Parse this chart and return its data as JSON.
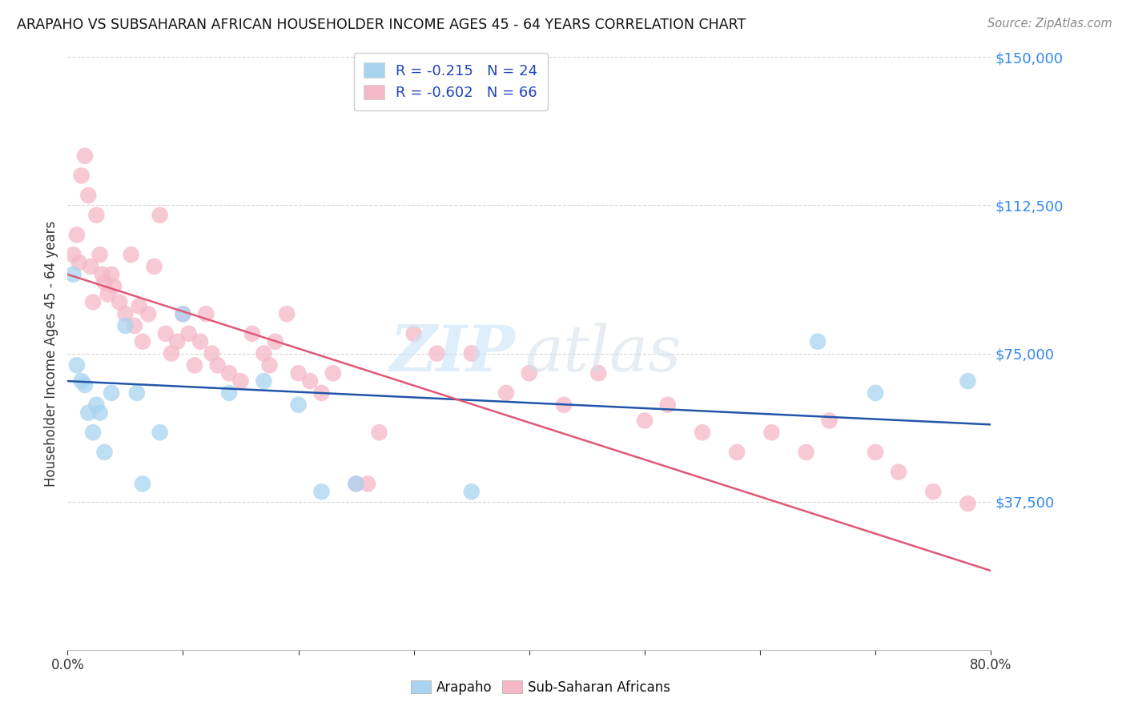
{
  "title": "ARAPAHO VS SUBSAHARAN AFRICAN HOUSEHOLDER INCOME AGES 45 - 64 YEARS CORRELATION CHART",
  "source": "Source: ZipAtlas.com",
  "ylabel": "Householder Income Ages 45 - 64 years",
  "xlim": [
    0,
    0.8
  ],
  "ylim": [
    0,
    150000
  ],
  "yticks": [
    0,
    37500,
    75000,
    112500,
    150000
  ],
  "ytick_labels": [
    "",
    "$37,500",
    "$75,000",
    "$112,500",
    "$150,000"
  ],
  "xticks": [
    0.0,
    0.1,
    0.2,
    0.3,
    0.4,
    0.5,
    0.6,
    0.7,
    0.8
  ],
  "xtick_labels": [
    "0.0%",
    "",
    "",
    "",
    "",
    "",
    "",
    "",
    "80.0%"
  ],
  "watermark_zip": "ZIP",
  "watermark_atlas": "atlas",
  "arapaho_color": "#a8d4f0",
  "subsaharan_color": "#f5b8c8",
  "arapaho_line_color": "#2255aa",
  "subsaharan_line_color": "#e05878",
  "arapaho_R": "-0.215",
  "arapaho_N": "24",
  "subsaharan_R": "-0.602",
  "subsaharan_N": "66",
  "arapaho_legend_label": "Arapaho",
  "subsaharan_legend_label": "Sub-Saharan Africans",
  "arapaho_x": [
    0.005,
    0.008,
    0.012,
    0.015,
    0.018,
    0.022,
    0.025,
    0.028,
    0.032,
    0.038,
    0.05,
    0.06,
    0.065,
    0.08,
    0.1,
    0.14,
    0.17,
    0.2,
    0.22,
    0.25,
    0.35,
    0.65,
    0.7,
    0.78
  ],
  "arapaho_y": [
    95000,
    72000,
    68000,
    67000,
    60000,
    55000,
    62000,
    60000,
    50000,
    65000,
    82000,
    65000,
    42000,
    55000,
    85000,
    65000,
    68000,
    62000,
    40000,
    42000,
    40000,
    78000,
    65000,
    68000
  ],
  "subsaharan_x": [
    0.005,
    0.008,
    0.01,
    0.012,
    0.015,
    0.018,
    0.02,
    0.022,
    0.025,
    0.028,
    0.03,
    0.032,
    0.035,
    0.038,
    0.04,
    0.045,
    0.05,
    0.055,
    0.058,
    0.062,
    0.065,
    0.07,
    0.075,
    0.08,
    0.085,
    0.09,
    0.095,
    0.1,
    0.105,
    0.11,
    0.115,
    0.12,
    0.125,
    0.13,
    0.14,
    0.15,
    0.16,
    0.17,
    0.175,
    0.18,
    0.19,
    0.2,
    0.21,
    0.22,
    0.23,
    0.25,
    0.26,
    0.27,
    0.3,
    0.32,
    0.35,
    0.38,
    0.4,
    0.43,
    0.46,
    0.5,
    0.52,
    0.55,
    0.58,
    0.61,
    0.64,
    0.66,
    0.7,
    0.72,
    0.75,
    0.78
  ],
  "subsaharan_y": [
    100000,
    105000,
    98000,
    120000,
    125000,
    115000,
    97000,
    88000,
    110000,
    100000,
    95000,
    93000,
    90000,
    95000,
    92000,
    88000,
    85000,
    100000,
    82000,
    87000,
    78000,
    85000,
    97000,
    110000,
    80000,
    75000,
    78000,
    85000,
    80000,
    72000,
    78000,
    85000,
    75000,
    72000,
    70000,
    68000,
    80000,
    75000,
    72000,
    78000,
    85000,
    70000,
    68000,
    65000,
    70000,
    42000,
    42000,
    55000,
    80000,
    75000,
    75000,
    65000,
    70000,
    62000,
    70000,
    58000,
    62000,
    55000,
    50000,
    55000,
    50000,
    58000,
    50000,
    45000,
    40000,
    37000
  ],
  "arapaho_line_x0": 0.0,
  "arapaho_line_y0": 68000,
  "arapaho_line_x1": 0.8,
  "arapaho_line_y1": 57000,
  "subsaharan_line_x0": 0.0,
  "subsaharan_line_y0": 95000,
  "subsaharan_line_x1": 0.8,
  "subsaharan_line_y1": 20000
}
